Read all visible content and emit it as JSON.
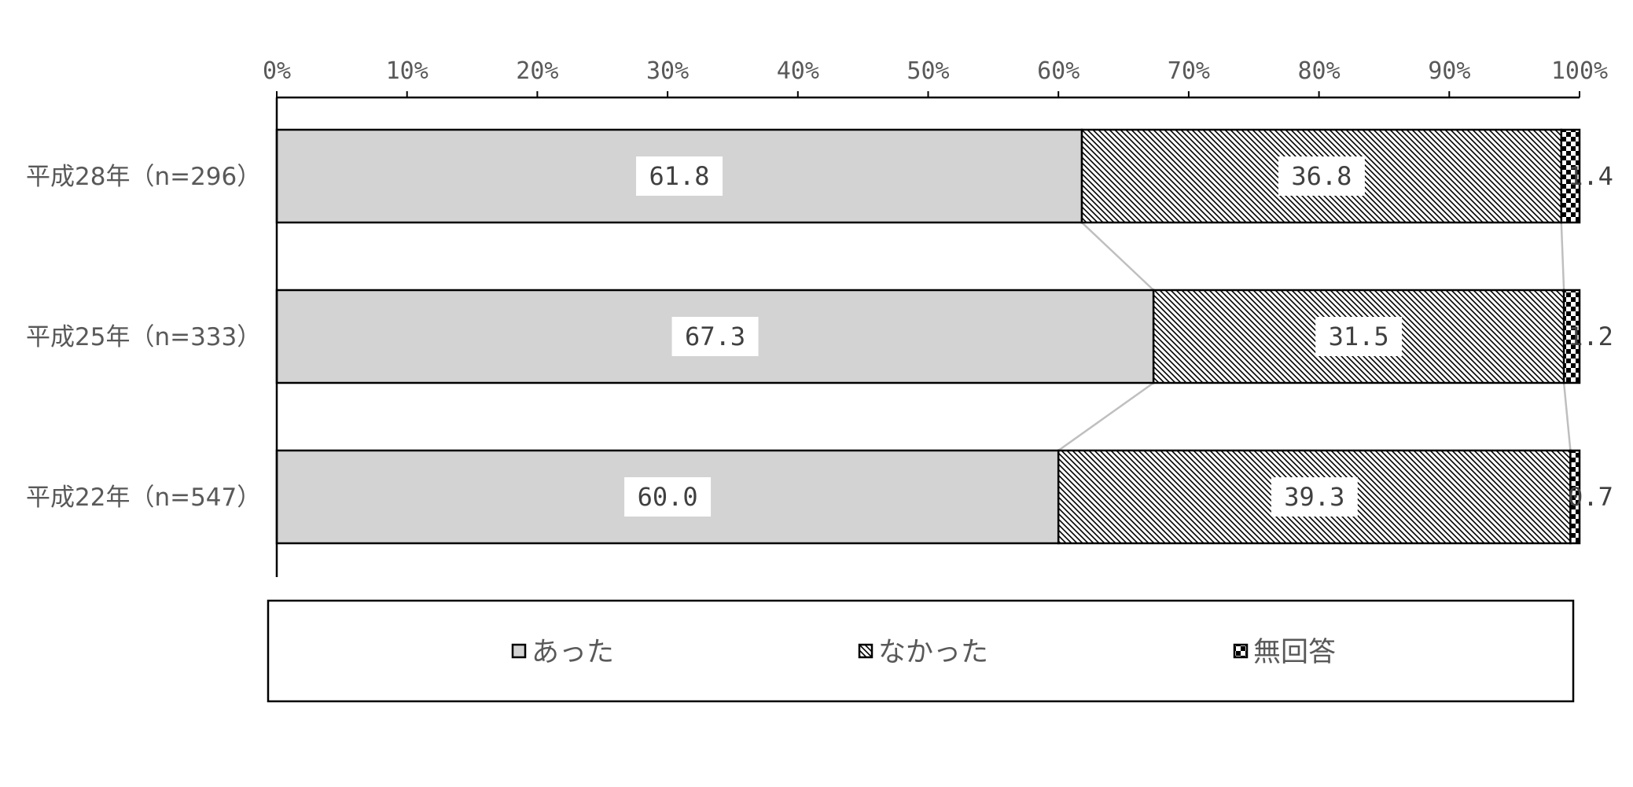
{
  "chart_data": {
    "type": "bar",
    "orientation": "horizontal",
    "stacked": "percent",
    "categories": [
      "平成28年（n=296）",
      "平成25年（n=333）",
      "平成22年（n=547）"
    ],
    "series": [
      {
        "name": "あった",
        "values": [
          61.8,
          67.3,
          60.0
        ],
        "color": "#d3d3d3",
        "pattern": "solid"
      },
      {
        "name": "なかった",
        "values": [
          36.8,
          31.5,
          39.3
        ],
        "color": "#000000",
        "pattern": "diagonal-hatch"
      },
      {
        "name": "無回答",
        "values": [
          1.4,
          1.2,
          0.7
        ],
        "color": "#000000",
        "pattern": "checker"
      }
    ],
    "data_labels": [
      [
        "61.8",
        "36.8",
        "1.4"
      ],
      [
        "67.3",
        "31.5",
        "1.2"
      ],
      [
        "60.0",
        "39.3",
        "0.7"
      ]
    ],
    "xlim": [
      0,
      100
    ],
    "x_ticks": [
      "0%",
      "10%",
      "20%",
      "30%",
      "40%",
      "50%",
      "60%",
      "70%",
      "80%",
      "90%",
      "100%"
    ],
    "x_axis_position": "top",
    "series_lines": true,
    "grid": false,
    "legend_position": "bottom"
  }
}
